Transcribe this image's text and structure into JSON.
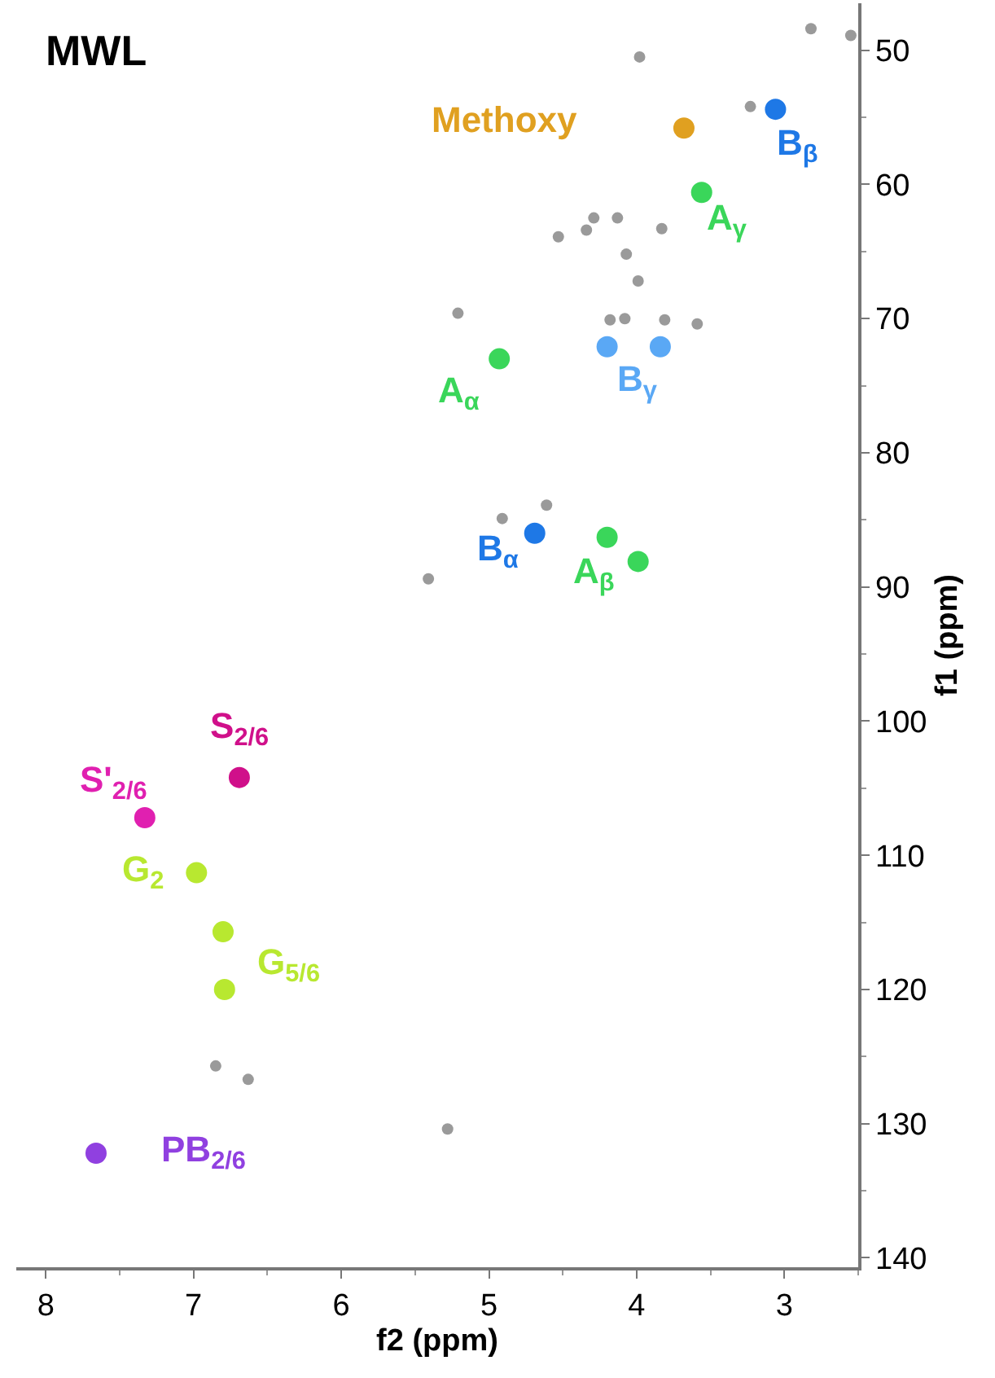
{
  "chart_data": {
    "type": "scatter",
    "title": "MWL",
    "xlabel": "f2 (ppm)",
    "ylabel": "f1 (ppm)",
    "xlim": [
      8.2,
      2.5
    ],
    "xticks": [
      8,
      7,
      6,
      5,
      4,
      3
    ],
    "ylim": [
      140.7,
      46.5
    ],
    "yticks": [
      50,
      60,
      70,
      80,
      90,
      100,
      110,
      120,
      130,
      140
    ],
    "legend": false,
    "marker": "circle",
    "series": [
      {
        "name": "Methoxy",
        "color": "#e0a020",
        "x": [
          3.68
        ],
        "values": [
          55.8
        ]
      },
      {
        "name": "B$_{β}$",
        "color": "#1e78e6",
        "x": [
          3.06
        ],
        "values": [
          54.4
        ]
      },
      {
        "name": "A$_{γ}$",
        "color": "#3ad65a",
        "x": [
          3.56
        ],
        "values": [
          60.6
        ]
      },
      {
        "name": "A$_{α}$",
        "color": "#3ad65a",
        "x": [
          4.93
        ],
        "values": [
          73.0
        ]
      },
      {
        "name": "B$_{γ}$",
        "color": "#5aa8f5",
        "x": [
          4.2,
          3.84
        ],
        "values": [
          72.1,
          72.1
        ]
      },
      {
        "name": "B$_{α}$",
        "color": "#1e78e6",
        "x": [
          4.69
        ],
        "values": [
          86.0
        ]
      },
      {
        "name": "A$_{β}$",
        "color": "#3ad65a",
        "x": [
          4.2,
          3.99
        ],
        "values": [
          86.3,
          88.1
        ]
      },
      {
        "name": "S$_{2/6}$",
        "color": "#d0108a",
        "x": [
          6.69
        ],
        "values": [
          104.2
        ]
      },
      {
        "name": "S'$_{2/6}$",
        "color": "#e020b0",
        "x": [
          7.33
        ],
        "values": [
          107.2
        ]
      },
      {
        "name": "G$_{2}$",
        "color": "#b8e830",
        "x": [
          6.98
        ],
        "values": [
          111.3
        ]
      },
      {
        "name": "G$_{5/6}$",
        "color": "#b8e830",
        "x": [
          6.8,
          6.79
        ],
        "values": [
          115.7,
          120.0
        ]
      },
      {
        "name": "PB$_{2/6}$",
        "color": "#9040e0",
        "x": [
          7.66
        ],
        "values": [
          132.2
        ]
      },
      {
        "color": "#9a9a9a",
        "x": [
          3.98,
          2.82,
          2.55,
          3.23,
          4.53,
          4.34,
          4.29,
          4.13,
          3.83,
          4.07,
          3.99,
          5.21,
          4.18,
          4.08,
          3.81,
          3.59,
          4.61,
          4.91,
          5.41,
          6.85,
          6.63,
          5.28
        ],
        "values": [
          50.5,
          48.4,
          48.9,
          54.2,
          63.9,
          63.4,
          62.5,
          62.5,
          63.3,
          65.2,
          67.2,
          69.6,
          70.1,
          70.0,
          70.1,
          70.4,
          83.9,
          84.9,
          89.4,
          125.7,
          126.7,
          130.4
        ]
      }
    ]
  }
}
